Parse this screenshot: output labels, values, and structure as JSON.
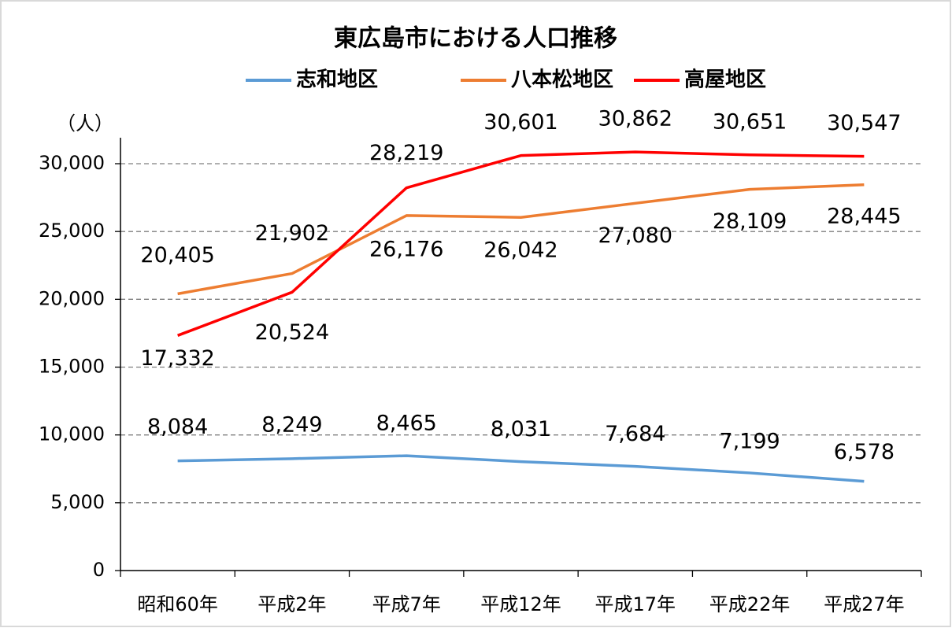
{
  "chart_data": {
    "type": "line",
    "title": "東広島市における人口推移",
    "y_label": "（人）",
    "categories": [
      "昭和60年",
      "平成2年",
      "平成7年",
      "平成12年",
      "平成17年",
      "平成22年",
      "平成27年"
    ],
    "series": [
      {
        "name": "志和地区",
        "color": "#5b9bd5",
        "values": [
          8084,
          8249,
          8465,
          8031,
          7684,
          7199,
          6578
        ],
        "value_labels": [
          "8,084",
          "8,249",
          "8,465",
          "8,031",
          "7,684",
          "7,199",
          "6,578"
        ]
      },
      {
        "name": "八本松地区",
        "color": "#ed7d31",
        "values": [
          20405,
          21902,
          26176,
          26042,
          27080,
          28109,
          28445
        ],
        "value_labels": [
          "20,405",
          "21,902",
          "26,176",
          "26,042",
          "27,080",
          "28,109",
          "28,445"
        ]
      },
      {
        "name": "高屋地区",
        "color": "#ff0000",
        "values": [
          17332,
          20524,
          28219,
          30601,
          30862,
          30651,
          30547
        ],
        "value_labels": [
          "17,332",
          "20,524",
          "28,219",
          "30,601",
          "30,862",
          "30,651",
          "30,547"
        ]
      }
    ],
    "ylim": [
      0,
      30000
    ],
    "yticks": [
      0,
      {
        "value": 5000,
        "label": "5,000"
      },
      {
        "value": 10000,
        "label": "10,000"
      },
      {
        "value": 15000,
        "label": "15,000"
      },
      {
        "value": 20000,
        "label": "20,000"
      },
      {
        "value": 25000,
        "label": "25,000"
      },
      {
        "value": 30000,
        "label": "30,000"
      }
    ],
    "grid": true,
    "legend": "top"
  }
}
